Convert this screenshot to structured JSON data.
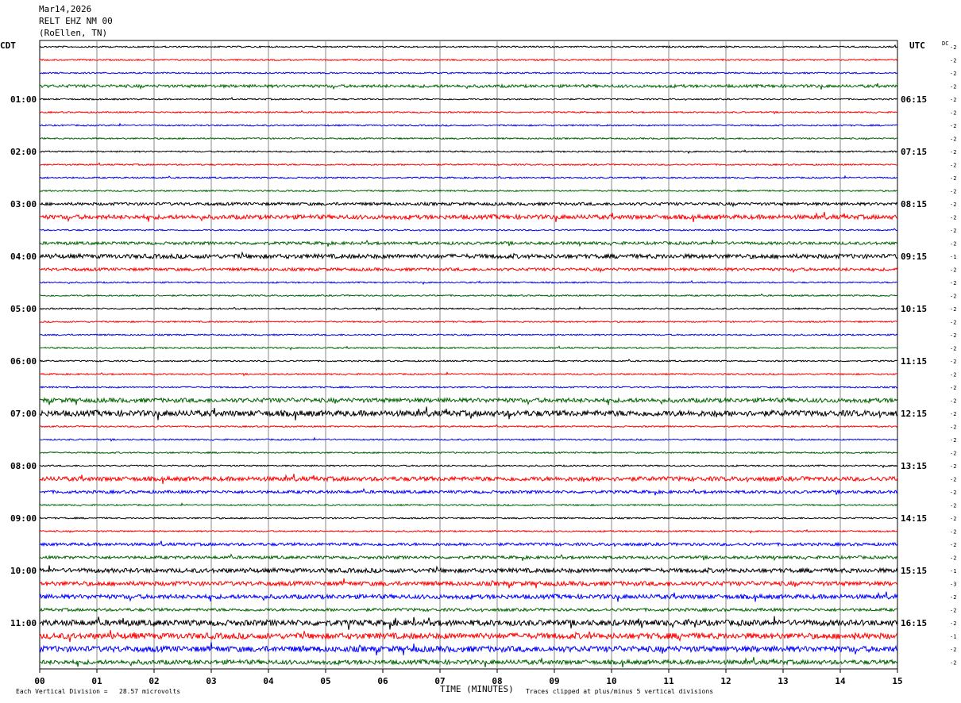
{
  "header": {
    "date": "Mar14,2026",
    "station": "RELT EHZ NM 00",
    "location": "(RoEllen, TN)"
  },
  "labels": {
    "left_tz": "CDT",
    "right_tz": "UTC",
    "dc": "DC",
    "xaxis_title": "TIME (MINUTES)",
    "footer_left": "Each Vertical Division =   28.57 microvolts",
    "footer_right": "Traces clipped at plus/minus 5 vertical divisions"
  },
  "chart_data": {
    "type": "line",
    "title": "RELT EHZ NM 00",
    "xlabel": "TIME (MINUTES)",
    "xlim": [
      0,
      15
    ],
    "x_ticks": [
      "00",
      "01",
      "02",
      "03",
      "04",
      "05",
      "06",
      "07",
      "08",
      "09",
      "10",
      "11",
      "12",
      "13",
      "14",
      "15"
    ],
    "trace_colors": [
      "#000000",
      "#ff0000",
      "#0000ff",
      "#006400"
    ],
    "left_hour_labels": [
      "01:00",
      "02:00",
      "03:00",
      "04:00",
      "05:00",
      "06:00",
      "07:00",
      "08:00",
      "09:00",
      "10:00",
      "11:00"
    ],
    "right_hour_labels": [
      "06:15",
      "07:15",
      "08:15",
      "09:15",
      "10:15",
      "11:15",
      "12:15",
      "13:15",
      "14:15",
      "15:15",
      "16:15"
    ],
    "dc_offsets": [
      "-2",
      "-2",
      "-2",
      "-2",
      "-2",
      "-2",
      "-2",
      "-2",
      "-2",
      "-2",
      "-2",
      "-2",
      "-2",
      "-2",
      "-2",
      "-2",
      "-1",
      "-2",
      "-2",
      "-2",
      "-2",
      "-2",
      "-2",
      "-2",
      "-2",
      "-2",
      "-2",
      "-2",
      "-2",
      "-2",
      "-2",
      "-2",
      "-2",
      "-2",
      "-2",
      "-2",
      "-2",
      "-2",
      "-2",
      "-2",
      "-1",
      "-3",
      "-2",
      "-2",
      "-2",
      "-1",
      "-2",
      "-2"
    ],
    "trace_amplitude": [
      1,
      1,
      1,
      2,
      1,
      1,
      1,
      1,
      1,
      1,
      1,
      1,
      2,
      3,
      1,
      2,
      3,
      2,
      1,
      1,
      1,
      1,
      1,
      1,
      1,
      1,
      1,
      3,
      4,
      1,
      1,
      1,
      1,
      3,
      2,
      1,
      1,
      1,
      2,
      2,
      3,
      3,
      3,
      2,
      4,
      4,
      4,
      3
    ],
    "units": "microvolts",
    "vertical_division": 28.57
  }
}
